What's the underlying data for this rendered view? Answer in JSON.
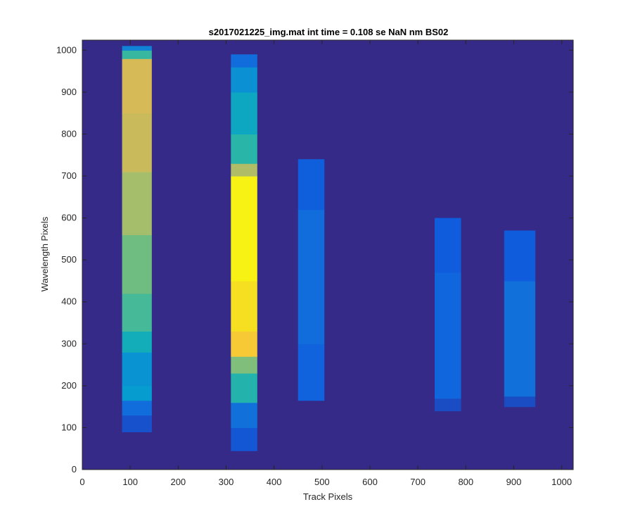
{
  "chart_data": {
    "type": "heatmap",
    "title": "s2017021225_img.mat int time = 0.108 se  NaN nm BS02",
    "xlabel": "Track Pixels",
    "ylabel": "Wavelength Pixels",
    "xlim": [
      0,
      1024
    ],
    "ylim": [
      0,
      1024
    ],
    "x_ticks": [
      0,
      100,
      200,
      300,
      400,
      500,
      600,
      700,
      800,
      900,
      1000
    ],
    "y_ticks": [
      0,
      100,
      200,
      300,
      400,
      500,
      600,
      700,
      800,
      900,
      1000
    ],
    "colormap": "parula",
    "background_color": "#352a87",
    "grid": false,
    "legend": "none",
    "tracks": [
      {
        "x_range": [
          83,
          145
        ],
        "bands": [
          {
            "y": [
              90,
              130
            ],
            "intensity": 0.08
          },
          {
            "y": [
              130,
              165
            ],
            "intensity": 0.15
          },
          {
            "y": [
              165,
              200
            ],
            "intensity": 0.3
          },
          {
            "y": [
              200,
              280
            ],
            "intensity": 0.27
          },
          {
            "y": [
              280,
              330
            ],
            "intensity": 0.38
          },
          {
            "y": [
              330,
              420
            ],
            "intensity": 0.47
          },
          {
            "y": [
              420,
              560
            ],
            "intensity": 0.53
          },
          {
            "y": [
              560,
              710
            ],
            "intensity": 0.6
          },
          {
            "y": [
              710,
              850
            ],
            "intensity": 0.66
          },
          {
            "y": [
              850,
              980
            ],
            "intensity": 0.68
          },
          {
            "y": [
              980,
              1000
            ],
            "intensity": 0.45
          },
          {
            "y": [
              1000,
              1010
            ],
            "intensity": 0.22
          }
        ]
      },
      {
        "x_range": [
          310,
          365
        ],
        "bands": [
          {
            "y": [
              45,
              100
            ],
            "intensity": 0.09
          },
          {
            "y": [
              100,
              160
            ],
            "intensity": 0.16
          },
          {
            "y": [
              160,
              230
            ],
            "intensity": 0.42
          },
          {
            "y": [
              230,
              270
            ],
            "intensity": 0.55
          },
          {
            "y": [
              270,
              330
            ],
            "intensity": 0.78
          },
          {
            "y": [
              330,
              450
            ],
            "intensity": 0.88
          },
          {
            "y": [
              450,
              700
            ],
            "intensity": 0.96
          },
          {
            "y": [
              700,
              730
            ],
            "intensity": 0.62
          },
          {
            "y": [
              730,
              800
            ],
            "intensity": 0.43
          },
          {
            "y": [
              800,
              900
            ],
            "intensity": 0.35
          },
          {
            "y": [
              900,
              960
            ],
            "intensity": 0.26
          },
          {
            "y": [
              960,
              990
            ],
            "intensity": 0.15
          }
        ]
      },
      {
        "x_range": [
          450,
          505
        ],
        "bands": [
          {
            "y": [
              165,
              300
            ],
            "intensity": 0.12
          },
          {
            "y": [
              300,
              620
            ],
            "intensity": 0.15
          },
          {
            "y": [
              620,
              740
            ],
            "intensity": 0.11
          }
        ]
      },
      {
        "x_range": [
          735,
          790
        ],
        "bands": [
          {
            "y": [
              140,
              170
            ],
            "intensity": 0.07
          },
          {
            "y": [
              170,
              470
            ],
            "intensity": 0.13
          },
          {
            "y": [
              470,
              600
            ],
            "intensity": 0.1
          }
        ]
      },
      {
        "x_range": [
          880,
          945
        ],
        "bands": [
          {
            "y": [
              150,
              175
            ],
            "intensity": 0.07
          },
          {
            "y": [
              175,
              450
            ],
            "intensity": 0.16
          },
          {
            "y": [
              450,
              570
            ],
            "intensity": 0.1
          }
        ]
      }
    ]
  }
}
